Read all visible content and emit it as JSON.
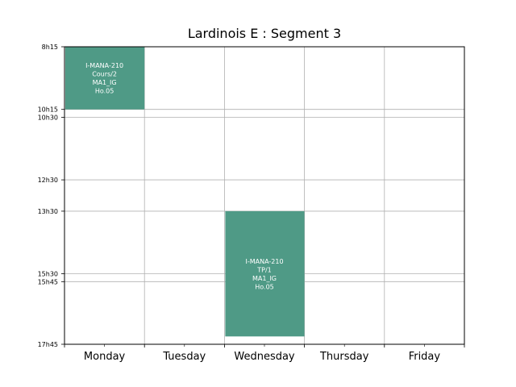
{
  "chart_data": {
    "type": "timetable",
    "title": "Lardinois E : Segment 3",
    "days": [
      "Monday",
      "Tuesday",
      "Wednesday",
      "Thursday",
      "Friday"
    ],
    "time_ticks": [
      {
        "label": "8h15",
        "minutes": 495
      },
      {
        "label": "10h15",
        "minutes": 615
      },
      {
        "label": "10h30",
        "minutes": 630
      },
      {
        "label": "12h30",
        "minutes": 750
      },
      {
        "label": "13h30",
        "minutes": 810
      },
      {
        "label": "15h30",
        "minutes": 930
      },
      {
        "label": "15h45",
        "minutes": 945
      },
      {
        "label": "17h45",
        "minutes": 1065
      }
    ],
    "ylim_minutes": [
      495,
      1065
    ],
    "grid": true,
    "color": "#4f9a86",
    "events": [
      {
        "day": "Monday",
        "start": "8h15",
        "end": "10h15",
        "lines": [
          "I-MANA-210",
          "Cours/2",
          "MA1_IG",
          "Ho.05"
        ]
      },
      {
        "day": "Wednesday",
        "start": "13h30",
        "end": "17h30",
        "lines": [
          "I-MANA-210",
          "TP/1",
          "MA1_IG",
          "Ho.05"
        ]
      }
    ]
  }
}
